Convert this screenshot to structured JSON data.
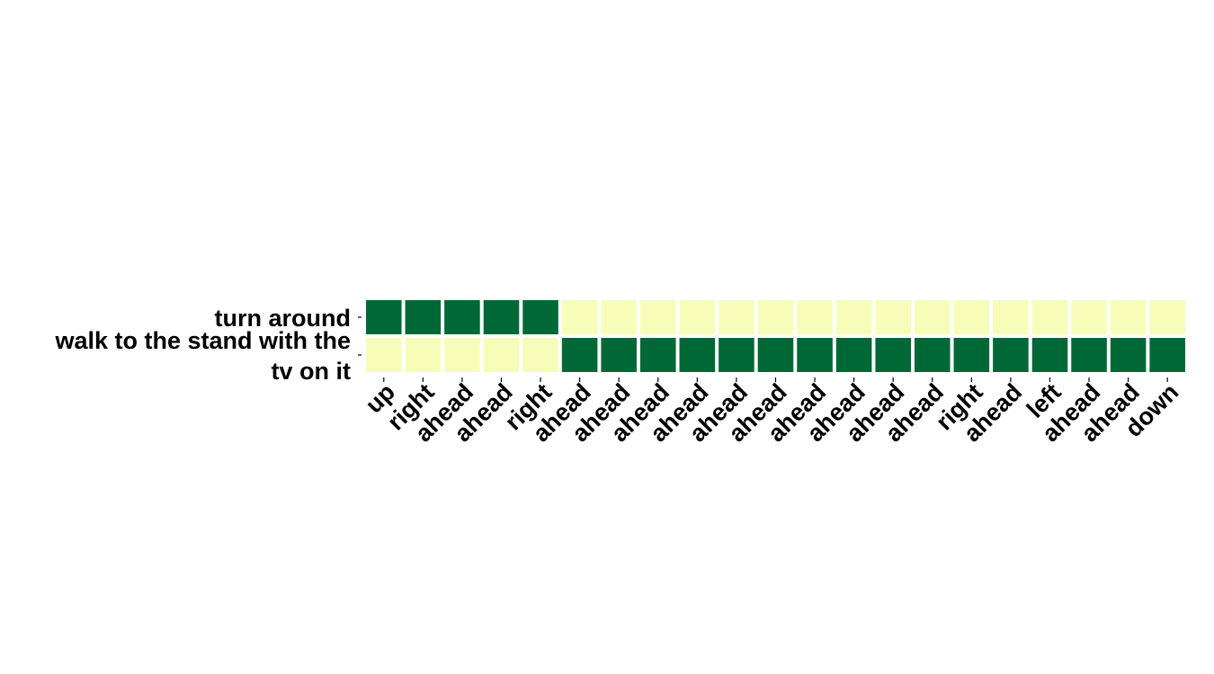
{
  "chart_data": {
    "type": "heatmap",
    "rows": [
      [
        "turn around"
      ],
      [
        "walk to the stand with the",
        "tv on it"
      ]
    ],
    "columns": [
      "up",
      "right",
      "ahead",
      "ahead",
      "right",
      "ahead",
      "ahead",
      "ahead",
      "ahead",
      "ahead",
      "ahead",
      "ahead",
      "ahead",
      "ahead",
      "ahead",
      "right",
      "ahead",
      "left",
      "ahead",
      "ahead",
      "down"
    ],
    "values": [
      [
        1,
        1,
        1,
        1,
        1,
        0,
        0,
        0,
        0,
        0,
        0,
        0,
        0,
        0,
        0,
        0,
        0,
        0,
        0,
        0,
        0
      ],
      [
        0,
        0,
        0,
        0,
        0,
        1,
        1,
        1,
        1,
        1,
        1,
        1,
        1,
        1,
        1,
        1,
        1,
        1,
        1,
        1,
        1
      ]
    ],
    "colorscale": {
      "low": "#f7fcb9",
      "high": "#006837"
    },
    "grid": false,
    "legend": "none"
  }
}
